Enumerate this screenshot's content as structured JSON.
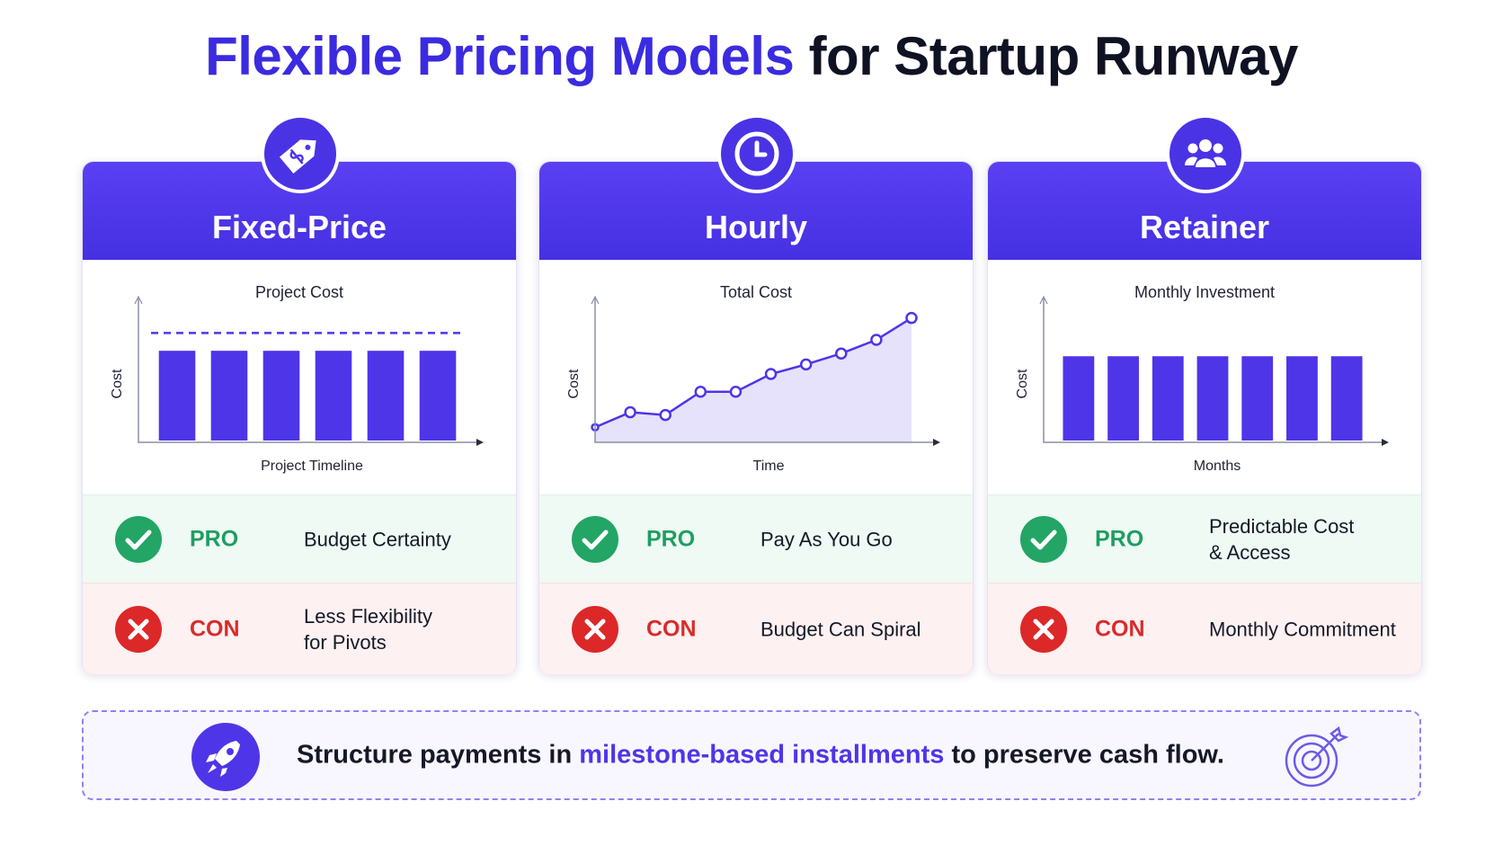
{
  "title": {
    "highlight": "Flexible Pricing Models",
    "rest": "for Startup Runway"
  },
  "cards": [
    {
      "name": "Fixed-Price",
      "chart": {
        "type": "bar",
        "title": "Project Cost",
        "y_label": "Cost",
        "x_label": "Project Timeline",
        "ylim": [
          0,
          100
        ],
        "values": [
          67,
          67,
          67,
          67,
          67,
          67
        ],
        "reference_line": 80,
        "color": "#4f35e8"
      },
      "pro": {
        "label": "PRO",
        "lines": [
          "Budget Certainty"
        ]
      },
      "con": {
        "label": "CON",
        "lines": [
          "Less Flexibility",
          "for Pivots"
        ]
      }
    },
    {
      "name": "Hourly",
      "chart": {
        "type": "area",
        "title": "Total Cost",
        "y_label": "Cost",
        "x_label": "Time",
        "ylim": [
          0,
          100
        ],
        "values": [
          11,
          22,
          20,
          37,
          37,
          50,
          57,
          65,
          75,
          91
        ],
        "color": "#4f35e8"
      },
      "pro": {
        "label": "PRO",
        "lines": [
          "Pay As You Go"
        ]
      },
      "con": {
        "label": "CON",
        "lines": [
          "Budget Can Spiral"
        ]
      }
    },
    {
      "name": "Retainer",
      "chart": {
        "type": "bar",
        "title": "Monthly Investment",
        "y_label": "Cost",
        "x_label": "Months",
        "ylim": [
          0,
          100
        ],
        "values": [
          63,
          63,
          63,
          63,
          63,
          63,
          63
        ],
        "color": "#4f35e8"
      },
      "pro": {
        "label": "PRO",
        "lines": [
          "Predictable Cost",
          "& Access"
        ]
      },
      "con": {
        "label": "CON",
        "lines": [
          "Monthly Commitment"
        ]
      }
    }
  ],
  "footer": {
    "before": "Structure payments in",
    "highlight": "milestone-based installments",
    "after": "to preserve cash flow."
  }
}
